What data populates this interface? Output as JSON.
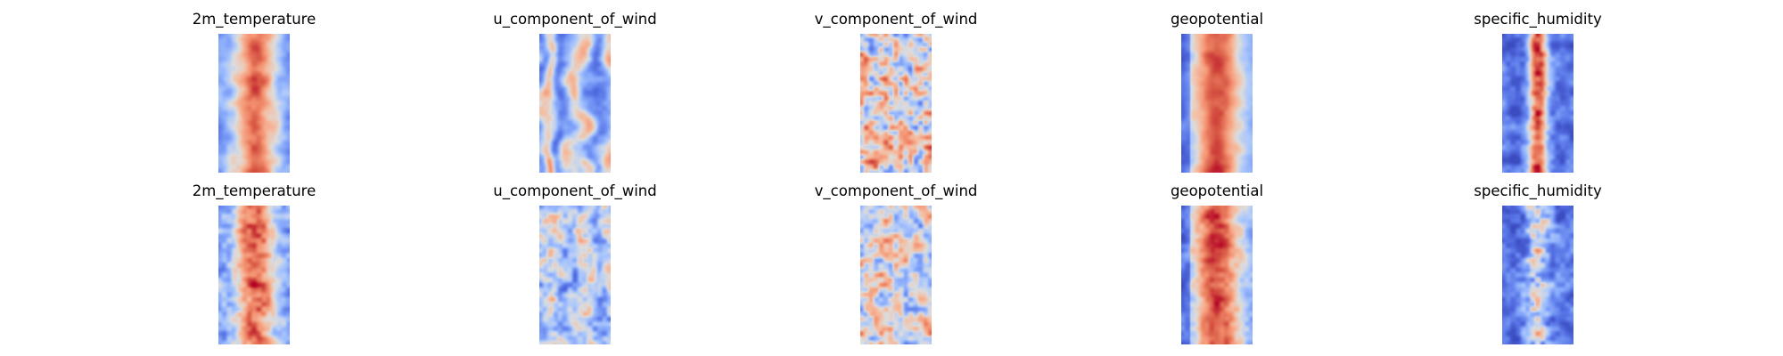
{
  "colormap": "coolwarm",
  "colors": {
    "background": "#ffffff",
    "cold": "#3b4cc0",
    "neutral": "#dddddd",
    "warm": "#b40426"
  },
  "chart_data": {
    "type": "heatmap",
    "rows": 2,
    "columns": 5,
    "panels": [
      {
        "title": "2m_temperature",
        "pattern": "temperature",
        "seed": 11,
        "smooth": true
      },
      {
        "title": "u_component_of_wind",
        "pattern": "uwind",
        "seed": 12,
        "smooth": true
      },
      {
        "title": "v_component_of_wind",
        "pattern": "vwind",
        "seed": 13,
        "smooth": true
      },
      {
        "title": "geopotential",
        "pattern": "geopotential",
        "seed": 14,
        "smooth": true
      },
      {
        "title": "specific_humidity",
        "pattern": "humidity",
        "seed": 15,
        "smooth": true
      },
      {
        "title": "2m_temperature",
        "pattern": "temperature",
        "seed": 21,
        "smooth": false
      },
      {
        "title": "u_component_of_wind",
        "pattern": "uwind",
        "seed": 22,
        "smooth": false
      },
      {
        "title": "v_component_of_wind",
        "pattern": "vwind",
        "seed": 23,
        "smooth": false
      },
      {
        "title": "geopotential",
        "pattern": "geopotential",
        "seed": 24,
        "smooth": false
      },
      {
        "title": "specific_humidity",
        "pattern": "humidity",
        "seed": 25,
        "smooth": false
      }
    ],
    "grid": false,
    "axes_visible": false
  }
}
